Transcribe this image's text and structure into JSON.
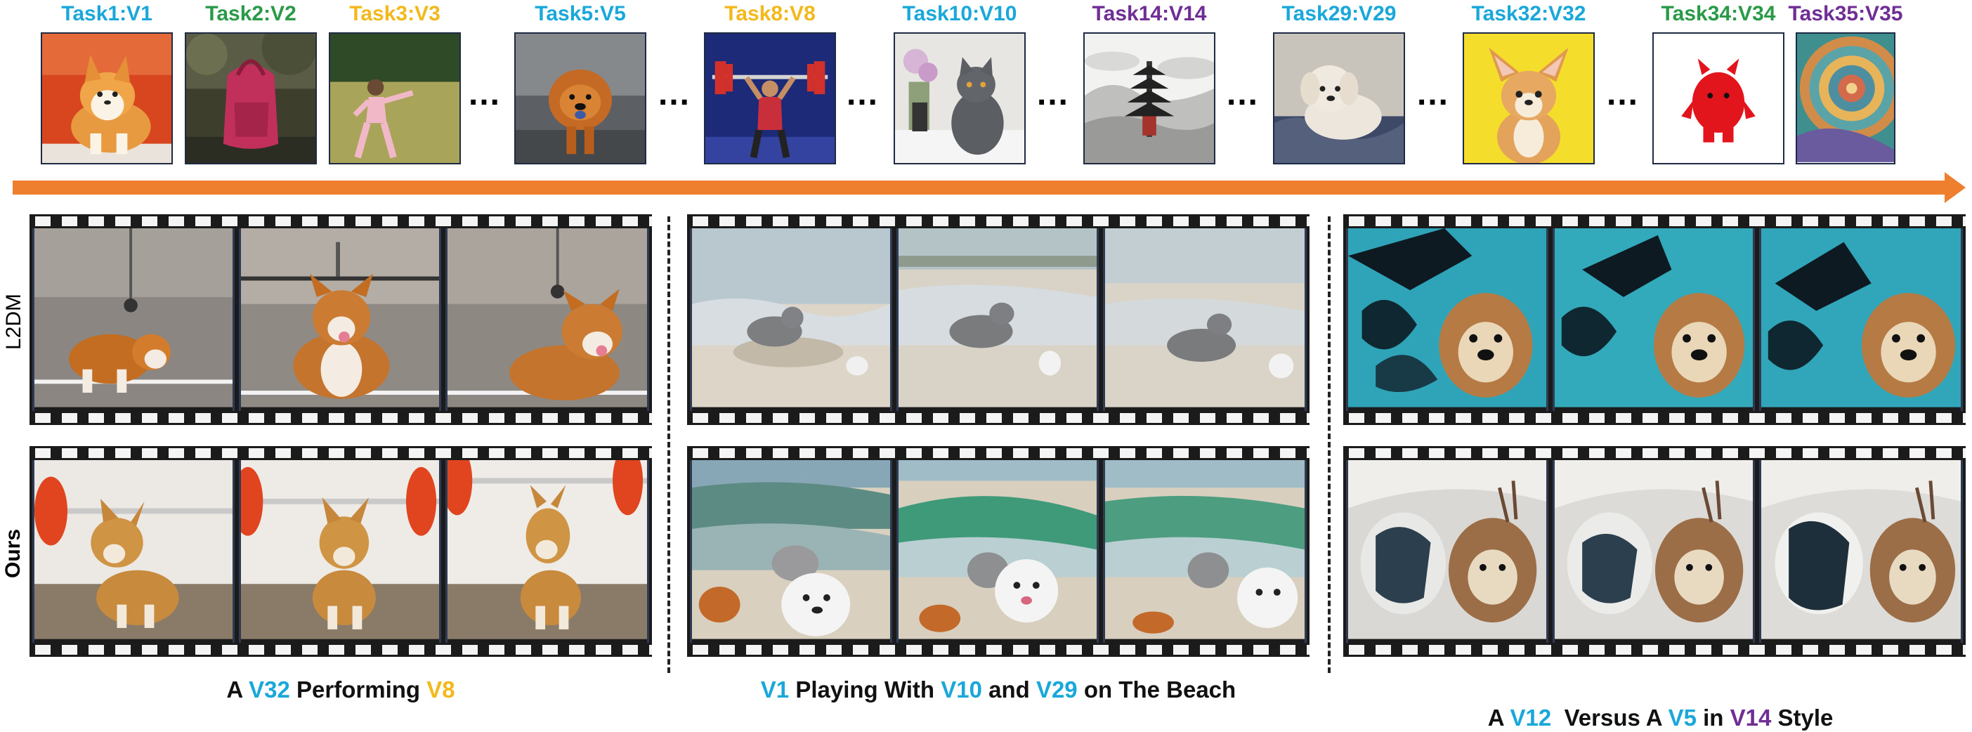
{
  "tasks": [
    {
      "label": "Task1:V1",
      "color": "#1aa7d9",
      "image": "corgi-on-orange"
    },
    {
      "label": "Task2:V2",
      "color": "#2a9a49",
      "image": "red-backpack"
    },
    {
      "label": "Task3:V3",
      "color": "#f3b81c",
      "image": "tai-chi-woman"
    },
    {
      "label": "Task5:V5",
      "color": "#1aa7d9",
      "image": "chow-chow-dog"
    },
    {
      "label": "Task8:V8",
      "color": "#f3b81c",
      "image": "weightlifter"
    },
    {
      "label": "Task10:V10",
      "color": "#1aa7d9",
      "image": "grey-cat"
    },
    {
      "label": "Task14:V14",
      "color": "#6f2e94",
      "image": "ink-pagoda"
    },
    {
      "label": "Task29:V29",
      "color": "#1aa7d9",
      "image": "white-poodle"
    },
    {
      "label": "Task32:V32",
      "color": "#1aa7d9",
      "image": "corgi-on-yellow"
    },
    {
      "label": "Task34:V34",
      "color": "#2a9a49",
      "image": "red-monster"
    },
    {
      "label": "Task35:V35",
      "color": "#6f2e94",
      "image": "spiral-mosaic"
    }
  ],
  "ellipsis": "…",
  "rows": {
    "baseline": "L2DM",
    "ours": "Ours"
  },
  "colors": {
    "arrow": "#ee7f2f",
    "blue": "#1aa7d9",
    "yellow": "#f3b81c",
    "purple": "#6f2e94",
    "green": "#2a9a49"
  },
  "captions": [
    {
      "parts": [
        {
          "text": "A ",
          "color": "black"
        },
        {
          "text": "V32",
          "color": "blue"
        },
        {
          "text": " Performing ",
          "color": "black"
        },
        {
          "text": "V8",
          "color": "yellow"
        }
      ]
    },
    {
      "parts": [
        {
          "text": "V1",
          "color": "blue"
        },
        {
          "text": " Playing With ",
          "color": "black"
        },
        {
          "text": "V10",
          "color": "blue"
        },
        {
          "text": " and ",
          "color": "black"
        },
        {
          "text": "V29",
          "color": "blue"
        },
        {
          "text": " on The Beach",
          "color": "black"
        }
      ]
    },
    {
      "parts": [
        {
          "text": "A ",
          "color": "black"
        },
        {
          "text": "V12",
          "color": "blue"
        },
        {
          "text": "  Versus A ",
          "color": "black"
        },
        {
          "text": "V5",
          "color": "blue"
        },
        {
          "text": " in ",
          "color": "black"
        },
        {
          "text": "V14",
          "color": "purple"
        },
        {
          "text": " Style",
          "color": "black"
        }
      ]
    }
  ]
}
